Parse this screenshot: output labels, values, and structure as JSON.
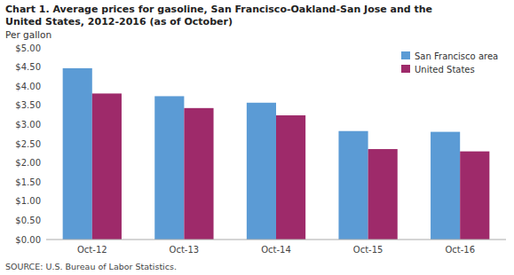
{
  "chart_data": {
    "type": "bar",
    "title": "Chart 1. Average prices for gasoline, San Francisco-Oakland-San Jose  and the\nUnited States, 2012-2016  (as of October)",
    "y_label": "Per gallon",
    "annotations": [
      "SOURCE: U.S. Bureau of Labor Statistics."
    ],
    "categories": [
      "Oct-12",
      "Oct-13",
      "Oct-14",
      "Oct-15",
      "Oct-16"
    ],
    "series": [
      {
        "name": "San Francisco area",
        "color": "#5B9BD5",
        "values": [
          4.47,
          3.74,
          3.57,
          2.83,
          2.81
        ]
      },
      {
        "name": "United States",
        "color": "#9E2A6A",
        "values": [
          3.81,
          3.43,
          3.24,
          2.36,
          2.3
        ]
      }
    ],
    "ylim": [
      0,
      5.0
    ],
    "yticks": [
      {
        "value": 0.0,
        "label": "$0.00"
      },
      {
        "value": 0.5,
        "label": "$0.50"
      },
      {
        "value": 1.0,
        "label": "$1.00"
      },
      {
        "value": 1.5,
        "label": "$1.50"
      },
      {
        "value": 2.0,
        "label": "$2.00"
      },
      {
        "value": 2.5,
        "label": "$2.50"
      },
      {
        "value": 3.0,
        "label": "$3.00"
      },
      {
        "value": 3.5,
        "label": "$3.50"
      },
      {
        "value": 4.0,
        "label": "$4.00"
      },
      {
        "value": 4.5,
        "label": "$4.50"
      },
      {
        "value": 5.0,
        "label": "$5.00"
      }
    ],
    "grid": false,
    "legend": "upper right"
  }
}
